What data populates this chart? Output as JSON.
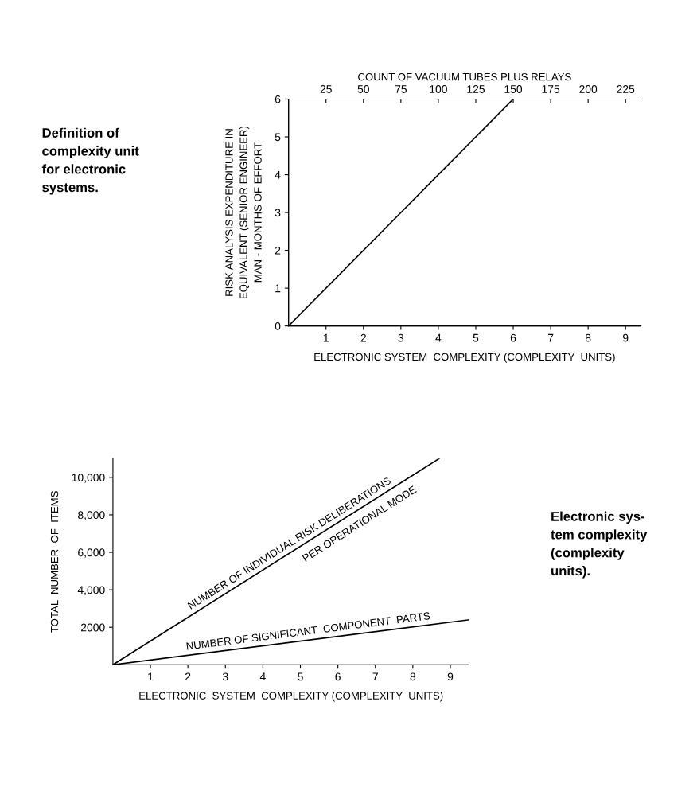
{
  "chart_data": [
    {
      "type": "line",
      "xlabel": "ELECTRONIC SYSTEM  COMPLEXITY (COMPLEXITY  UNITS)",
      "ylabel": "RISK ANALYSIS EXPENDITURE IN\nEQUIVALENT (SENIOR ENGINEER)\nMAN - MONTHS OF EFFORT",
      "x2label": "COUNT OF VACUUM TUBES PLUS RELAYS",
      "annotations": [
        "Definition of\ncomplexity unit\nfor electronic\nsystems."
      ],
      "series": [
        {
          "color": "#000000",
          "x": [
            0,
            6
          ],
          "values": [
            0,
            6
          ]
        }
      ],
      "xlim": [
        0,
        9.4
      ],
      "xticks": [
        1,
        2,
        3,
        4,
        5,
        6,
        7,
        8,
        9
      ],
      "ylim": [
        0,
        6
      ],
      "yticks": [
        0,
        1,
        2,
        3,
        4,
        5,
        6
      ],
      "x2lim": [
        0,
        235
      ],
      "x2ticks": [
        25,
        50,
        75,
        100,
        125,
        150,
        175,
        200,
        225
      ],
      "grid": false,
      "legend": false,
      "marker": "none",
      "line_style": "solid"
    },
    {
      "type": "line",
      "xlabel": "ELECTRONIC  SYSTEM  COMPLEXITY (COMPLEXITY  UNITS)",
      "ylabel": "TOTAL  NUMBER  OF  ITEMS",
      "annotations": [
        "Electronic sys-\ntem complexity\n(complexity\nunits)."
      ],
      "series": [
        {
          "name": "NUMBER OF INDIVIDUAL RISK DELIBERATIONS\nPER OPERATIONAL MODE",
          "color": "#000000",
          "x": [
            0,
            8.7
          ],
          "values": [
            0,
            11000
          ]
        },
        {
          "name": "NUMBER OF SIGNIFICANT  COMPONENT  PARTS",
          "color": "#000000",
          "x": [
            0,
            9.5
          ],
          "values": [
            0,
            2400
          ]
        }
      ],
      "xlim": [
        0,
        9.5
      ],
      "xticks": [
        1,
        2,
        3,
        4,
        5,
        6,
        7,
        8,
        9
      ],
      "ylim": [
        0,
        11000
      ],
      "yticks": [
        {
          "value": 2000,
          "label": "2000"
        },
        {
          "value": 4000,
          "label": "4,000"
        },
        {
          "value": 6000,
          "label": "6,000"
        },
        {
          "value": 8000,
          "label": "8,000"
        },
        {
          "value": 10000,
          "label": "10,000"
        }
      ],
      "grid": false,
      "legend": false,
      "marker": "none",
      "line_style": "solid"
    }
  ]
}
